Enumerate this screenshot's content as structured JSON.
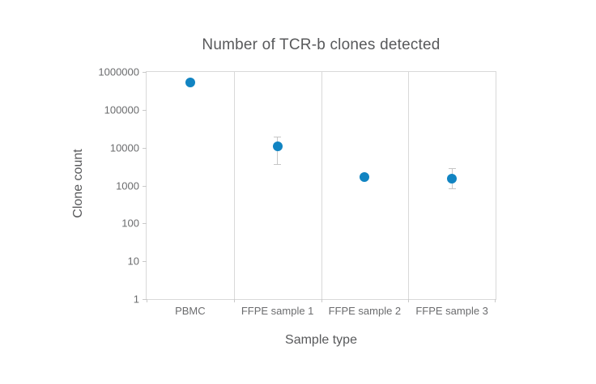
{
  "chart_data": {
    "type": "scatter",
    "title": "Number of TCR-b clones detected",
    "xlabel": "Sample type",
    "ylabel": "Clone count",
    "yscale": "log",
    "ylim": [
      1,
      1000000
    ],
    "yticks": [
      1,
      10,
      100,
      1000,
      10000,
      100000,
      1000000
    ],
    "ytick_labels": [
      "1",
      "10",
      "100",
      "1000",
      "10000",
      "100000",
      "1000000"
    ],
    "categories": [
      "PBMC",
      "FFPE sample 1",
      "FFPE sample 2",
      "FFPE sample 3"
    ],
    "series": [
      {
        "name": "Clone count",
        "points": [
          {
            "category": "PBMC",
            "value": 520000,
            "error_high": null,
            "error_low": null
          },
          {
            "category": "FFPE sample 1",
            "value": 11000,
            "error_high": 20000,
            "error_low": 3700
          },
          {
            "category": "FFPE sample 2",
            "value": 1700,
            "error_high": null,
            "error_low": null
          },
          {
            "category": "FFPE sample 3",
            "value": 1550,
            "error_high": 2900,
            "error_low": 860
          }
        ]
      }
    ],
    "legend": "none",
    "grid": "vertical panel separators only, no horizontal gridlines",
    "colors": {
      "point": "#1184c2",
      "error_bar": "#c6c6c6",
      "plot_border": "#d9d9d9",
      "tick_mark": "#c9c9c9",
      "title_text": "#58595b",
      "axis_title_text": "#58595b",
      "tick_text": "#6b6c6e"
    }
  }
}
